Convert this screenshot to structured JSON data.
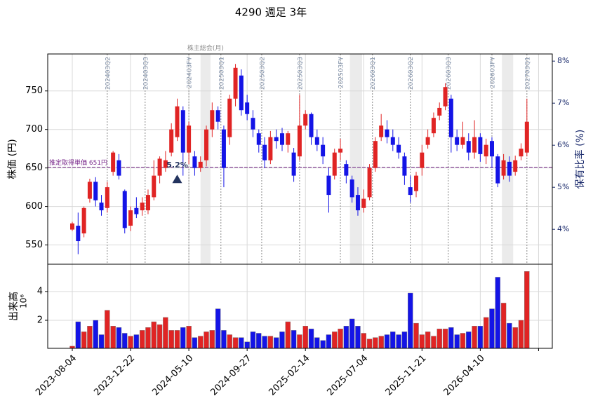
{
  "chart_data": {
    "type": "candlestick",
    "title": "4290 週足 3年",
    "x": [
      "2023-08-04",
      "2023-08-18",
      "2023-09-01",
      "2023-09-15",
      "2023-09-29",
      "2023-10-13",
      "2023-10-27",
      "2023-11-10",
      "2023-11-24",
      "2023-12-08",
      "2023-12-22",
      "2024-01-05",
      "2024-01-19",
      "2024-02-02",
      "2024-02-16",
      "2024-03-01",
      "2024-03-15",
      "2024-03-29",
      "2024-04-12",
      "2024-04-26",
      "2024-05-10",
      "2024-05-24",
      "2024-06-07",
      "2024-06-21",
      "2024-07-05",
      "2024-07-19",
      "2024-08-02",
      "2024-08-16",
      "2024-08-30",
      "2024-09-13",
      "2024-09-27",
      "2024-10-11",
      "2024-10-25",
      "2024-11-08",
      "2024-11-22",
      "2024-12-06",
      "2024-12-20",
      "2025-01-03",
      "2025-01-17",
      "2025-01-31",
      "2025-02-14",
      "2025-02-28",
      "2025-03-14",
      "2025-03-28",
      "2025-04-11",
      "2025-04-25",
      "2025-05-09",
      "2025-05-23",
      "2025-06-06",
      "2025-06-20",
      "2025-07-04",
      "2025-07-18",
      "2025-08-01",
      "2025-08-15",
      "2025-08-29",
      "2025-09-12",
      "2025-09-26",
      "2025-10-10",
      "2025-10-24",
      "2025-11-07",
      "2025-11-21",
      "2025-12-05",
      "2025-12-19",
      "2026-01-02",
      "2026-01-16",
      "2026-01-30",
      "2026-02-13",
      "2026-02-27",
      "2026-03-13",
      "2026-03-27",
      "2026-04-10",
      "2026-04-24",
      "2026-05-08",
      "2026-05-22",
      "2026-06-05",
      "2026-06-19",
      "2026-07-03",
      "2026-07-17",
      "2026-07-31"
    ],
    "open": [
      570,
      575,
      565,
      610,
      632,
      605,
      598,
      645,
      660,
      620,
      575,
      598,
      595,
      595,
      612,
      640,
      650,
      670,
      690,
      725,
      670,
      665,
      650,
      660,
      700,
      725,
      700,
      690,
      740,
      770,
      735,
      715,
      695,
      680,
      660,
      690,
      695,
      680,
      670,
      665,
      705,
      720,
      690,
      680,
      640,
      640,
      670,
      655,
      635,
      615,
      598,
      612,
      650,
      690,
      700,
      690,
      680,
      665,
      625,
      620,
      650,
      680,
      695,
      718,
      730,
      740,
      690,
      680,
      685,
      670,
      690,
      665,
      685,
      665,
      640,
      658,
      645,
      665,
      670
    ],
    "high": [
      580,
      592,
      600,
      636,
      638,
      615,
      632,
      672,
      668,
      622,
      600,
      612,
      612,
      622,
      660,
      665,
      672,
      708,
      740,
      730,
      710,
      672,
      665,
      705,
      735,
      730,
      705,
      745,
      785,
      778,
      745,
      725,
      700,
      690,
      698,
      700,
      702,
      698,
      676,
      745,
      725,
      722,
      700,
      690,
      650,
      675,
      688,
      660,
      640,
      625,
      622,
      655,
      690,
      720,
      712,
      700,
      690,
      670,
      640,
      645,
      680,
      700,
      722,
      735,
      760,
      745,
      700,
      710,
      695,
      712,
      695,
      688,
      690,
      668,
      668,
      665,
      666,
      682,
      740
    ],
    "low": [
      568,
      538,
      560,
      605,
      600,
      588,
      592,
      640,
      635,
      565,
      568,
      585,
      588,
      590,
      608,
      630,
      645,
      665,
      685,
      640,
      655,
      640,
      645,
      652,
      690,
      700,
      625,
      680,
      730,
      718,
      712,
      690,
      670,
      650,
      655,
      675,
      672,
      670,
      632,
      660,
      700,
      680,
      672,
      655,
      592,
      635,
      660,
      630,
      605,
      588,
      592,
      608,
      645,
      685,
      682,
      672,
      662,
      628,
      605,
      612,
      640,
      675,
      690,
      712,
      725,
      670,
      672,
      675,
      660,
      662,
      658,
      655,
      650,
      625,
      635,
      632,
      640,
      660,
      665
    ],
    "close": [
      578,
      555,
      598,
      632,
      608,
      595,
      625,
      670,
      640,
      572,
      595,
      590,
      605,
      615,
      640,
      662,
      660,
      700,
      730,
      670,
      705,
      650,
      658,
      700,
      725,
      710,
      650,
      740,
      780,
      725,
      720,
      700,
      680,
      660,
      690,
      685,
      680,
      695,
      640,
      705,
      720,
      690,
      680,
      665,
      615,
      670,
      675,
      640,
      612,
      595,
      610,
      650,
      685,
      705,
      690,
      680,
      670,
      640,
      615,
      640,
      670,
      690,
      715,
      728,
      755,
      690,
      680,
      690,
      670,
      690,
      668,
      680,
      665,
      630,
      660,
      640,
      660,
      675,
      710
    ],
    "volume": [
      0.2,
      1.9,
      1.2,
      1.6,
      2.0,
      1.0,
      2.7,
      1.6,
      1.5,
      1.1,
      0.9,
      1.0,
      1.3,
      1.5,
      1.9,
      1.7,
      2.2,
      1.3,
      1.3,
      1.5,
      1.6,
      0.8,
      0.9,
      1.2,
      1.3,
      2.8,
      1.3,
      1.0,
      0.8,
      0.8,
      0.5,
      1.2,
      1.1,
      0.9,
      0.9,
      0.8,
      1.2,
      1.9,
      1.3,
      1.0,
      1.6,
      1.4,
      0.8,
      0.6,
      1.0,
      1.2,
      1.4,
      1.6,
      2.1,
      1.6,
      1.1,
      0.7,
      0.8,
      0.9,
      1.0,
      1.2,
      1.0,
      1.2,
      3.9,
      1.8,
      1.0,
      1.2,
      0.9,
      1.4,
      1.4,
      1.5,
      1.0,
      1.1,
      1.2,
      1.6,
      1.6,
      2.2,
      2.8,
      5.0,
      3.2,
      1.8,
      1.5,
      2.0,
      5.4
    ],
    "up_color": "#e02424",
    "down_color": "#1414e6",
    "xlim": [
      "2023-06-06",
      "2026-09-30"
    ],
    "xticks": [
      {
        "value": "2023-08-04",
        "label": "2023-08-04"
      },
      {
        "value": "2023-12-22",
        "label": "2023-12-22"
      },
      {
        "value": "2024-05-10",
        "label": "2024-05-10"
      },
      {
        "value": "2024-09-27",
        "label": "2024-09-27"
      },
      {
        "value": "2025-02-14",
        "label": "2025-02-14"
      },
      {
        "value": "2025-07-04",
        "label": "2025-07-04"
      },
      {
        "value": "2025-11-21",
        "label": "2025-11-21"
      },
      {
        "value": "2026-04-10",
        "label": "2026-04-10"
      },
      {
        "value": "2026-08-28",
        "label": null
      }
    ],
    "ylabel": "株価 (円)",
    "ylim": [
      525,
      798
    ],
    "yticks": [
      550,
      600,
      650,
      700,
      750
    ],
    "y2label": "保有比率 (%)",
    "y2lim": [
      3.17,
      8.17
    ],
    "y2ticks": [
      {
        "value": 4,
        "label": "4%"
      },
      {
        "value": 5,
        "label": "5%"
      },
      {
        "value": 6,
        "label": "6%"
      },
      {
        "value": 7,
        "label": "7%"
      },
      {
        "value": 8,
        "label": "8%"
      }
    ],
    "y2color": "#1a2a6c",
    "grid": true,
    "volume_panel": {
      "ylabel": "出来高",
      "offset_label": "10⁶",
      "ylim": [
        0.05,
        5.9
      ],
      "yticks": [
        2,
        4
      ]
    },
    "cost_line": {
      "value": 651,
      "label": "推定取得単価 651円",
      "color": "#7a2a8c"
    },
    "holding": {
      "x": "2024-04-12",
      "value": 5.2,
      "label": "5.2%"
    },
    "reports": [
      {
        "x": "2023-10-27",
        "label": "202403Q2"
      },
      {
        "x": "2024-01-26",
        "label": "202403Q3"
      },
      {
        "x": "2024-05-10",
        "label": "202403FY"
      },
      {
        "x": "2024-07-26",
        "label": "202503Q1"
      },
      {
        "x": "2024-11-01",
        "label": "202503Q2"
      },
      {
        "x": "2025-01-31",
        "label": "202503Q3"
      },
      {
        "x": "2025-05-09",
        "label": "202503FY"
      },
      {
        "x": "2025-07-25",
        "label": "202603Q1"
      },
      {
        "x": "2025-10-24",
        "label": "202603Q2"
      },
      {
        "x": "2026-01-23",
        "label": "202603Q3"
      },
      {
        "x": "2026-05-08",
        "label": "202603FY"
      },
      {
        "x": "2026-07-31",
        "label": "202703Q1"
      }
    ],
    "meetings": {
      "label": "株主総会(月)",
      "ranges": [
        [
          "2024-06-07",
          "2024-07-01"
        ],
        [
          "2025-06-01",
          "2025-06-30"
        ],
        [
          "2026-06-01",
          "2026-06-28"
        ]
      ]
    }
  }
}
